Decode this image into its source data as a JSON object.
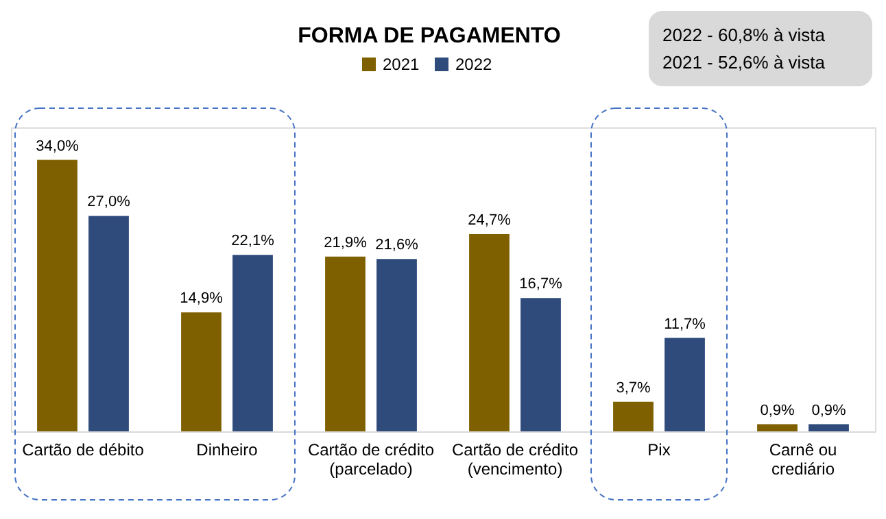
{
  "chart_data": {
    "type": "bar",
    "title": "FORMA DE PAGAMENTO",
    "categories": [
      "Cartão de débito",
      "Dinheiro",
      "Cartão de crédito\n(parcelado)",
      "Cartão de crédito\n(vencimento)",
      "Pix",
      "Carnê ou\ncrediário"
    ],
    "series": [
      {
        "name": "2021",
        "color": "#7f6000",
        "values": [
          34.0,
          14.9,
          21.9,
          24.7,
          3.7,
          0.9
        ],
        "value_labels": [
          "34,0%",
          "14,9%",
          "21,9%",
          "24,7%",
          "3,7%",
          "0,9%"
        ]
      },
      {
        "name": "2022",
        "color": "#2f4b7c",
        "values": [
          27.0,
          22.1,
          21.6,
          16.7,
          11.7,
          0.9
        ],
        "value_labels": [
          "27,0%",
          "22,1%",
          "21,6%",
          "16,7%",
          "11,7%",
          "0,9%"
        ]
      }
    ],
    "legend": "top",
    "annotations": [
      "2022 - 60,8% à vista\n2021 - 52,6% à vista"
    ]
  }
}
